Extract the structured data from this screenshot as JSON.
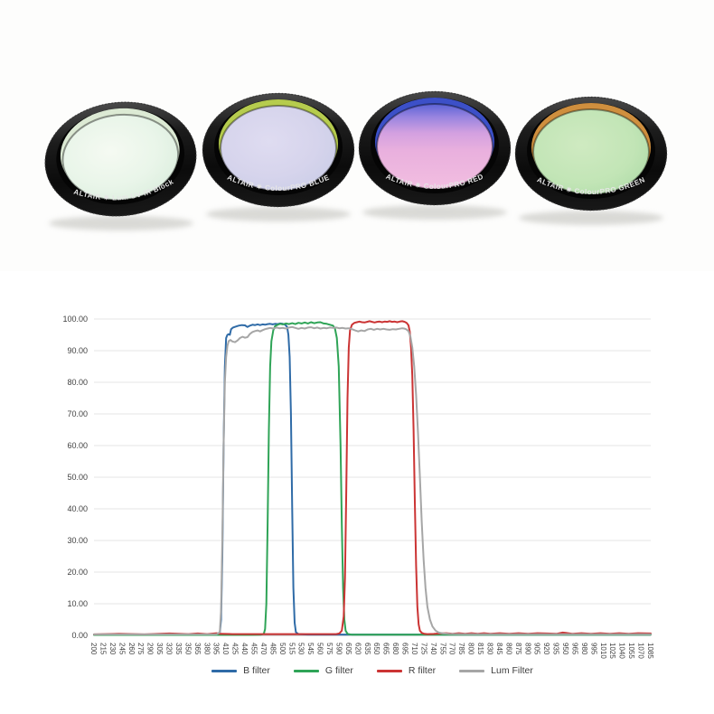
{
  "photo": {
    "filters": [
      {
        "brand": "ALTAIR ✷",
        "label": "Lum UV-IR Block",
        "tilt": -6,
        "reflection": "#dcead4",
        "glass_type": "radial",
        "glass_stops": [
          [
            0,
            "#f5faf2"
          ],
          [
            0.55,
            "#e9f5e9"
          ],
          [
            1,
            "#d8ecdb"
          ]
        ]
      },
      {
        "brand": "ALTAIR ✷",
        "label": "ColourPRO BLUE",
        "tilt": 0,
        "reflection": "#b6cc4e",
        "glass_type": "radial",
        "glass_stops": [
          [
            0,
            "#dfdcf1"
          ],
          [
            0.55,
            "#d6d4ec"
          ],
          [
            1,
            "#c8cce6"
          ]
        ]
      },
      {
        "brand": "ALTAIR ✷",
        "label": "ColourPRO RED",
        "tilt": 0,
        "reflection": "#3c50c8",
        "glass_type": "linear",
        "glass_stops": [
          [
            0,
            "#5b63d6"
          ],
          [
            0.16,
            "#9a85e0"
          ],
          [
            0.34,
            "#d3a0e0"
          ],
          [
            0.55,
            "#e9b0de"
          ],
          [
            1,
            "#f2bee0"
          ]
        ]
      },
      {
        "brand": "ALTAIR ✷",
        "label": "ColourPRO GREEN",
        "tilt": 0,
        "reflection": "#cf8f3e",
        "glass_type": "radial",
        "glass_stops": [
          [
            0,
            "#cfeac1"
          ],
          [
            0.6,
            "#c2e5b6"
          ],
          [
            1,
            "#acdaa6"
          ]
        ]
      }
    ]
  },
  "chart_data": {
    "type": "line",
    "title": "",
    "xlabel": "",
    "ylabel": "",
    "xlim": [
      200,
      1085
    ],
    "ylim": [
      0,
      100
    ],
    "y_tick_step": 10,
    "y_tick_decimals": 2,
    "grid_color": "#e4e4e4",
    "axis_color": "#ababab",
    "label_color": "#404040",
    "legend_position": "bottom",
    "x_ticks": [
      200,
      215,
      230,
      245,
      260,
      275,
      290,
      305,
      320,
      335,
      350,
      365,
      380,
      395,
      410,
      425,
      440,
      455,
      470,
      485,
      500,
      515,
      530,
      545,
      560,
      575,
      590,
      605,
      620,
      635,
      650,
      665,
      680,
      695,
      710,
      725,
      740,
      755,
      770,
      785,
      800,
      815,
      830,
      845,
      860,
      875,
      890,
      905,
      920,
      935,
      950,
      965,
      980,
      995,
      1010,
      1025,
      1040,
      1055,
      1070,
      1085
    ],
    "series": [
      {
        "name": "B filter",
        "color": "#2f6ba7",
        "points": [
          [
            200,
            0.2
          ],
          [
            300,
            0.2
          ],
          [
            380,
            0.2
          ],
          [
            395,
            0.3
          ],
          [
            400,
            0.8
          ],
          [
            402,
            5
          ],
          [
            404,
            25
          ],
          [
            406,
            60
          ],
          [
            408,
            85
          ],
          [
            410,
            94
          ],
          [
            412,
            95
          ],
          [
            414,
            95.2
          ],
          [
            416,
            95
          ],
          [
            418,
            96.8
          ],
          [
            421,
            97.3
          ],
          [
            425,
            97.6
          ],
          [
            430,
            97.9
          ],
          [
            435,
            98.1
          ],
          [
            440,
            98
          ],
          [
            444,
            97.5
          ],
          [
            448,
            97.9
          ],
          [
            452,
            98.2
          ],
          [
            456,
            98.1
          ],
          [
            460,
            98.3
          ],
          [
            464,
            98.1
          ],
          [
            468,
            98.3
          ],
          [
            472,
            98.2
          ],
          [
            476,
            98.4
          ],
          [
            480,
            98.5
          ],
          [
            484,
            98.3
          ],
          [
            488,
            98.5
          ],
          [
            492,
            98.4
          ],
          [
            496,
            98.6
          ],
          [
            500,
            98.5
          ],
          [
            504,
            98.2
          ],
          [
            507,
            97.5
          ],
          [
            509,
            95
          ],
          [
            511,
            88
          ],
          [
            513,
            70
          ],
          [
            515,
            40
          ],
          [
            517,
            15
          ],
          [
            519,
            4
          ],
          [
            521,
            1
          ],
          [
            525,
            0.4
          ],
          [
            540,
            0.25
          ],
          [
            600,
            0.25
          ],
          [
            700,
            0.25
          ],
          [
            800,
            0.25
          ],
          [
            900,
            0.25
          ],
          [
            1000,
            0.25
          ],
          [
            1085,
            0.25
          ]
        ]
      },
      {
        "name": "G filter",
        "color": "#2fa457",
        "points": [
          [
            200,
            0.15
          ],
          [
            300,
            0.15
          ],
          [
            400,
            0.15
          ],
          [
            450,
            0.15
          ],
          [
            465,
            0.2
          ],
          [
            470,
            0.5
          ],
          [
            472,
            2
          ],
          [
            474,
            10
          ],
          [
            476,
            35
          ],
          [
            478,
            65
          ],
          [
            480,
            85
          ],
          [
            482,
            93
          ],
          [
            485,
            96.5
          ],
          [
            488,
            97.8
          ],
          [
            492,
            98.2
          ],
          [
            496,
            98.5
          ],
          [
            500,
            98.3
          ],
          [
            505,
            98.6
          ],
          [
            510,
            98.4
          ],
          [
            515,
            98.7
          ],
          [
            520,
            98.4
          ],
          [
            525,
            98.8
          ],
          [
            530,
            98.6
          ],
          [
            535,
            98.9
          ],
          [
            540,
            98.6
          ],
          [
            545,
            99
          ],
          [
            550,
            98.7
          ],
          [
            555,
            98.9
          ],
          [
            560,
            99
          ],
          [
            565,
            98.6
          ],
          [
            570,
            98.5
          ],
          [
            575,
            98.2
          ],
          [
            580,
            97.9
          ],
          [
            583,
            97
          ],
          [
            586,
            94
          ],
          [
            589,
            85
          ],
          [
            592,
            60
          ],
          [
            594,
            35
          ],
          [
            596,
            15
          ],
          [
            598,
            5
          ],
          [
            600,
            1.5
          ],
          [
            603,
            0.5
          ],
          [
            610,
            0.2
          ],
          [
            700,
            0.2
          ],
          [
            800,
            0.2
          ],
          [
            900,
            0.2
          ],
          [
            1000,
            0.2
          ],
          [
            1085,
            0.2
          ]
        ]
      },
      {
        "name": "R filter",
        "color": "#cb3434",
        "points": [
          [
            200,
            0.3
          ],
          [
            240,
            0.5
          ],
          [
            280,
            0.3
          ],
          [
            320,
            0.6
          ],
          [
            350,
            0.4
          ],
          [
            365,
            0.6
          ],
          [
            380,
            0.4
          ],
          [
            395,
            0.7
          ],
          [
            400,
            0.5
          ],
          [
            420,
            0.4
          ],
          [
            450,
            0.4
          ],
          [
            500,
            0.4
          ],
          [
            550,
            0.4
          ],
          [
            585,
            0.4
          ],
          [
            590,
            0.6
          ],
          [
            594,
            1.5
          ],
          [
            597,
            6
          ],
          [
            599,
            18
          ],
          [
            601,
            45
          ],
          [
            603,
            75
          ],
          [
            605,
            91
          ],
          [
            607,
            96.5
          ],
          [
            610,
            98.2
          ],
          [
            614,
            98.8
          ],
          [
            618,
            99
          ],
          [
            622,
            99.2
          ],
          [
            626,
            99
          ],
          [
            630,
            98.9
          ],
          [
            634,
            99.1
          ],
          [
            638,
            99.3
          ],
          [
            642,
            99.1
          ],
          [
            646,
            98.9
          ],
          [
            650,
            99.1
          ],
          [
            654,
            99.2
          ],
          [
            658,
            99
          ],
          [
            662,
            99.2
          ],
          [
            666,
            99.1
          ],
          [
            670,
            99.3
          ],
          [
            674,
            99.1
          ],
          [
            678,
            99.2
          ],
          [
            682,
            99
          ],
          [
            686,
            99.2
          ],
          [
            690,
            99.3
          ],
          [
            694,
            99.1
          ],
          [
            697,
            98.8
          ],
          [
            700,
            98
          ],
          [
            702,
            96
          ],
          [
            704,
            91
          ],
          [
            706,
            82
          ],
          [
            708,
            65
          ],
          [
            710,
            42
          ],
          [
            712,
            22
          ],
          [
            714,
            9
          ],
          [
            716,
            3.5
          ],
          [
            718,
            1.5
          ],
          [
            721,
            0.8
          ],
          [
            725,
            0.5
          ],
          [
            730,
            0.4
          ],
          [
            740,
            0.45
          ],
          [
            750,
            0.6
          ],
          [
            760,
            0.7
          ],
          [
            770,
            0.5
          ],
          [
            780,
            0.7
          ],
          [
            790,
            0.5
          ],
          [
            800,
            0.7
          ],
          [
            810,
            0.5
          ],
          [
            820,
            0.7
          ],
          [
            830,
            0.5
          ],
          [
            845,
            0.7
          ],
          [
            860,
            0.5
          ],
          [
            875,
            0.7
          ],
          [
            890,
            0.5
          ],
          [
            905,
            0.7
          ],
          [
            920,
            0.6
          ],
          [
            935,
            0.5
          ],
          [
            945,
            0.9
          ],
          [
            950,
            0.8
          ],
          [
            960,
            0.5
          ],
          [
            975,
            0.7
          ],
          [
            990,
            0.5
          ],
          [
            1005,
            0.7
          ],
          [
            1020,
            0.5
          ],
          [
            1035,
            0.7
          ],
          [
            1050,
            0.5
          ],
          [
            1065,
            0.7
          ],
          [
            1085,
            0.6
          ]
        ]
      },
      {
        "name": "Lum Filter",
        "color": "#a6a6a6",
        "points": [
          [
            200,
            0.3
          ],
          [
            300,
            0.3
          ],
          [
            395,
            0.35
          ],
          [
            400,
            1
          ],
          [
            402,
            8
          ],
          [
            404,
            30
          ],
          [
            406,
            60
          ],
          [
            408,
            80
          ],
          [
            410,
            88
          ],
          [
            412,
            91.5
          ],
          [
            414,
            93
          ],
          [
            417,
            93.4
          ],
          [
            420,
            92.9
          ],
          [
            424,
            92.7
          ],
          [
            428,
            93.2
          ],
          [
            432,
            94
          ],
          [
            436,
            94.4
          ],
          [
            440,
            94.1
          ],
          [
            444,
            94.3
          ],
          [
            448,
            95.3
          ],
          [
            452,
            95.9
          ],
          [
            456,
            96.2
          ],
          [
            460,
            96.4
          ],
          [
            464,
            96.1
          ],
          [
            468,
            96.5
          ],
          [
            472,
            96.8
          ],
          [
            476,
            97
          ],
          [
            480,
            97.2
          ],
          [
            485,
            97
          ],
          [
            490,
            97.3
          ],
          [
            495,
            97.1
          ],
          [
            500,
            97.2
          ],
          [
            505,
            97
          ],
          [
            510,
            97.3
          ],
          [
            515,
            97.5
          ],
          [
            520,
            97.2
          ],
          [
            525,
            96.9
          ],
          [
            530,
            97.2
          ],
          [
            535,
            97
          ],
          [
            540,
            97.3
          ],
          [
            545,
            97.4
          ],
          [
            550,
            97.1
          ],
          [
            555,
            97.3
          ],
          [
            560,
            97
          ],
          [
            565,
            97.2
          ],
          [
            570,
            97.1
          ],
          [
            575,
            97.3
          ],
          [
            580,
            97.2
          ],
          [
            585,
            97.3
          ],
          [
            590,
            97.1
          ],
          [
            595,
            97.2
          ],
          [
            600,
            97
          ],
          [
            605,
            97.1
          ],
          [
            610,
            96.8
          ],
          [
            615,
            96.4
          ],
          [
            620,
            96.1
          ],
          [
            625,
            96.4
          ],
          [
            630,
            96.2
          ],
          [
            635,
            96.7
          ],
          [
            640,
            96.9
          ],
          [
            645,
            96.6
          ],
          [
            650,
            96.9
          ],
          [
            655,
            96.7
          ],
          [
            660,
            96.9
          ],
          [
            665,
            96.7
          ],
          [
            670,
            96.6
          ],
          [
            675,
            96.8
          ],
          [
            680,
            96.7
          ],
          [
            685,
            96.9
          ],
          [
            690,
            97.1
          ],
          [
            693,
            97
          ],
          [
            696,
            96.8
          ],
          [
            700,
            96.2
          ],
          [
            703,
            94.5
          ],
          [
            706,
            91
          ],
          [
            709,
            85
          ],
          [
            712,
            76
          ],
          [
            715,
            64
          ],
          [
            718,
            50
          ],
          [
            721,
            36
          ],
          [
            724,
            24
          ],
          [
            727,
            15
          ],
          [
            730,
            9
          ],
          [
            734,
            5
          ],
          [
            738,
            2.8
          ],
          [
            743,
            1.5
          ],
          [
            748,
            0.9
          ],
          [
            755,
            0.6
          ],
          [
            765,
            0.45
          ],
          [
            780,
            0.4
          ],
          [
            820,
            0.38
          ],
          [
            900,
            0.38
          ],
          [
            1000,
            0.38
          ],
          [
            1085,
            0.38
          ]
        ]
      }
    ]
  }
}
